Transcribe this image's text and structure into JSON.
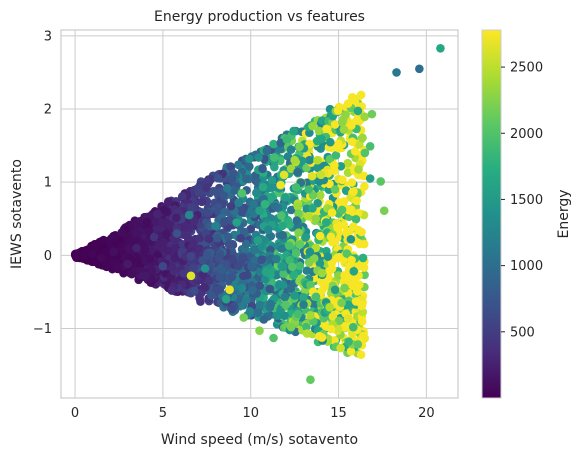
{
  "chart_data": {
    "type": "scatter",
    "title": "Energy production vs features",
    "xlabel": "Wind speed (m/s) sotavento",
    "ylabel": "IEWS sotavento",
    "xlim": [
      -0.8,
      21.8
    ],
    "ylim": [
      -1.95,
      3.08
    ],
    "xticks": [
      0,
      5,
      10,
      15,
      20
    ],
    "yticks": [
      -1,
      0,
      1,
      2,
      3
    ],
    "grid": true,
    "colorbar": {
      "label": "Energy",
      "colormap": "viridis",
      "range": [
        0,
        2780
      ],
      "ticks": [
        500,
        1000,
        1500,
        2000,
        2500
      ]
    },
    "points": [
      {
        "x": 20.8,
        "y": 2.83,
        "energy": 1650
      },
      {
        "x": 19.6,
        "y": 2.55,
        "energy": 1000
      },
      {
        "x": 18.3,
        "y": 2.5,
        "energy": 1100
      },
      {
        "x": 17.6,
        "y": 0.61,
        "energy": 2200
      },
      {
        "x": 17.4,
        "y": 1.01,
        "energy": 2050
      },
      {
        "x": 16.9,
        "y": 1.93,
        "energy": 2150
      },
      {
        "x": 16.8,
        "y": 1.49,
        "energy": 1950
      },
      {
        "x": 16.5,
        "y": 1.4,
        "energy": 2000
      },
      {
        "x": 16.8,
        "y": 1.05,
        "energy": 1550
      },
      {
        "x": 15.7,
        "y": 0.22,
        "energy": 1400
      },
      {
        "x": 15.4,
        "y": 1.92,
        "energy": 2300
      },
      {
        "x": 15.3,
        "y": 1.72,
        "energy": 2350
      },
      {
        "x": 14.8,
        "y": 0.9,
        "energy": 2100
      },
      {
        "x": 15.2,
        "y": 0.62,
        "energy": 2000
      },
      {
        "x": 14.5,
        "y": -0.71,
        "energy": 2450
      },
      {
        "x": 13.4,
        "y": -0.82,
        "energy": 2400
      },
      {
        "x": 13.4,
        "y": -1.7,
        "energy": 2100
      },
      {
        "x": 11.3,
        "y": -1.13,
        "energy": 2000
      },
      {
        "x": 10.5,
        "y": -1.03,
        "energy": 2250
      },
      {
        "x": 12.3,
        "y": -0.98,
        "energy": 2200
      },
      {
        "x": 12.5,
        "y": -0.55,
        "energy": 1500
      },
      {
        "x": 13.7,
        "y": 0.5,
        "energy": 2300
      },
      {
        "x": 14.3,
        "y": 0.45,
        "energy": 1700
      },
      {
        "x": 14.0,
        "y": 1.1,
        "energy": 2550
      },
      {
        "x": 13.8,
        "y": 1.3,
        "energy": 2450
      },
      {
        "x": 12.5,
        "y": 1.3,
        "energy": 2400
      },
      {
        "x": 11.9,
        "y": 1.1,
        "energy": 2650
      },
      {
        "x": 11.7,
        "y": 0.96,
        "energy": 2700
      },
      {
        "x": 9.5,
        "y": 0.85,
        "energy": 2000
      },
      {
        "x": 9.2,
        "y": 0.45,
        "energy": 1600
      },
      {
        "x": 8.8,
        "y": -0.47,
        "energy": 2700
      },
      {
        "x": 6.6,
        "y": -0.28,
        "energy": 2650
      },
      {
        "x": 9.6,
        "y": -0.85,
        "energy": 2200
      },
      {
        "x": 8.6,
        "y": -0.6,
        "energy": 1600
      },
      {
        "x": 10.2,
        "y": 0.07,
        "energy": 1100
      },
      {
        "x": 11.0,
        "y": 0.35,
        "energy": 1300
      },
      {
        "x": 12.8,
        "y": 0.15,
        "energy": 2100
      },
      {
        "x": 13.3,
        "y": 0.9,
        "energy": 1900
      },
      {
        "x": 10.8,
        "y": 0.7,
        "energy": 1800
      },
      {
        "x": 8.0,
        "y": 0.4,
        "energy": 1200
      },
      {
        "x": 7.4,
        "y": -0.18,
        "energy": 1400
      },
      {
        "x": 6.5,
        "y": 0.55,
        "energy": 1300
      },
      {
        "x": 5.8,
        "y": 0.3,
        "energy": 700
      },
      {
        "x": 5.0,
        "y": -0.15,
        "energy": 600
      },
      {
        "x": 4.5,
        "y": 0.25,
        "energy": 400
      },
      {
        "x": 3.5,
        "y": 0.1,
        "energy": 250
      },
      {
        "x": 3.0,
        "y": -0.12,
        "energy": 200
      },
      {
        "x": 2.2,
        "y": 0.05,
        "energy": 100
      },
      {
        "x": 1.5,
        "y": -0.03,
        "energy": 60
      },
      {
        "x": 1.0,
        "y": 0.02,
        "energy": 40
      },
      {
        "x": 0.5,
        "y": 0.01,
        "energy": 20
      },
      {
        "x": 0.2,
        "y": 0.03,
        "energy": 10
      }
    ]
  }
}
